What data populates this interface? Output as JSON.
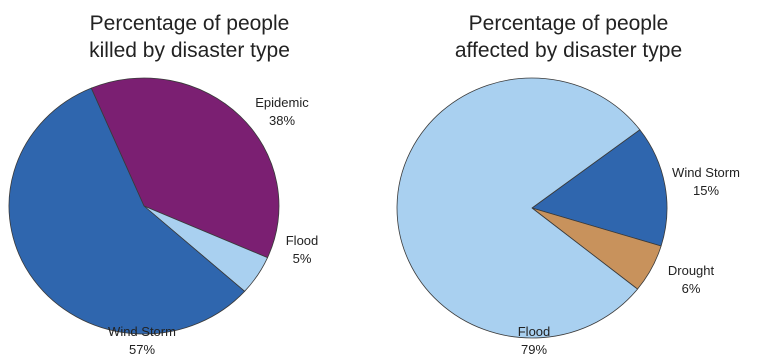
{
  "chart_data": [
    {
      "type": "pie",
      "title_lines": [
        "Percentage of people",
        "killed by disaster type"
      ],
      "slices": [
        {
          "label": "Epidemic",
          "value": 38,
          "value_label": "38%",
          "color": "#7b1f72"
        },
        {
          "label": "Flood",
          "value": 5,
          "value_label": "5%",
          "color": "#a9d0f0"
        },
        {
          "label": "Wind Storm",
          "value": 57,
          "value_label": "57%",
          "color": "#2f66ae"
        }
      ]
    },
    {
      "type": "pie",
      "title_lines": [
        "Percentage of people",
        "affected by disaster type"
      ],
      "slices": [
        {
          "label": "Wind Storm",
          "value": 15,
          "value_label": "15%",
          "color": "#2f66ae"
        },
        {
          "label": "Drought",
          "value": 6,
          "value_label": "6%",
          "color": "#c8925c"
        },
        {
          "label": "Flood",
          "value": 79,
          "value_label": "79%",
          "color": "#a9d0f0"
        }
      ]
    }
  ],
  "colors": {
    "slice_border": "#3a3a3a",
    "text": "#222222"
  }
}
